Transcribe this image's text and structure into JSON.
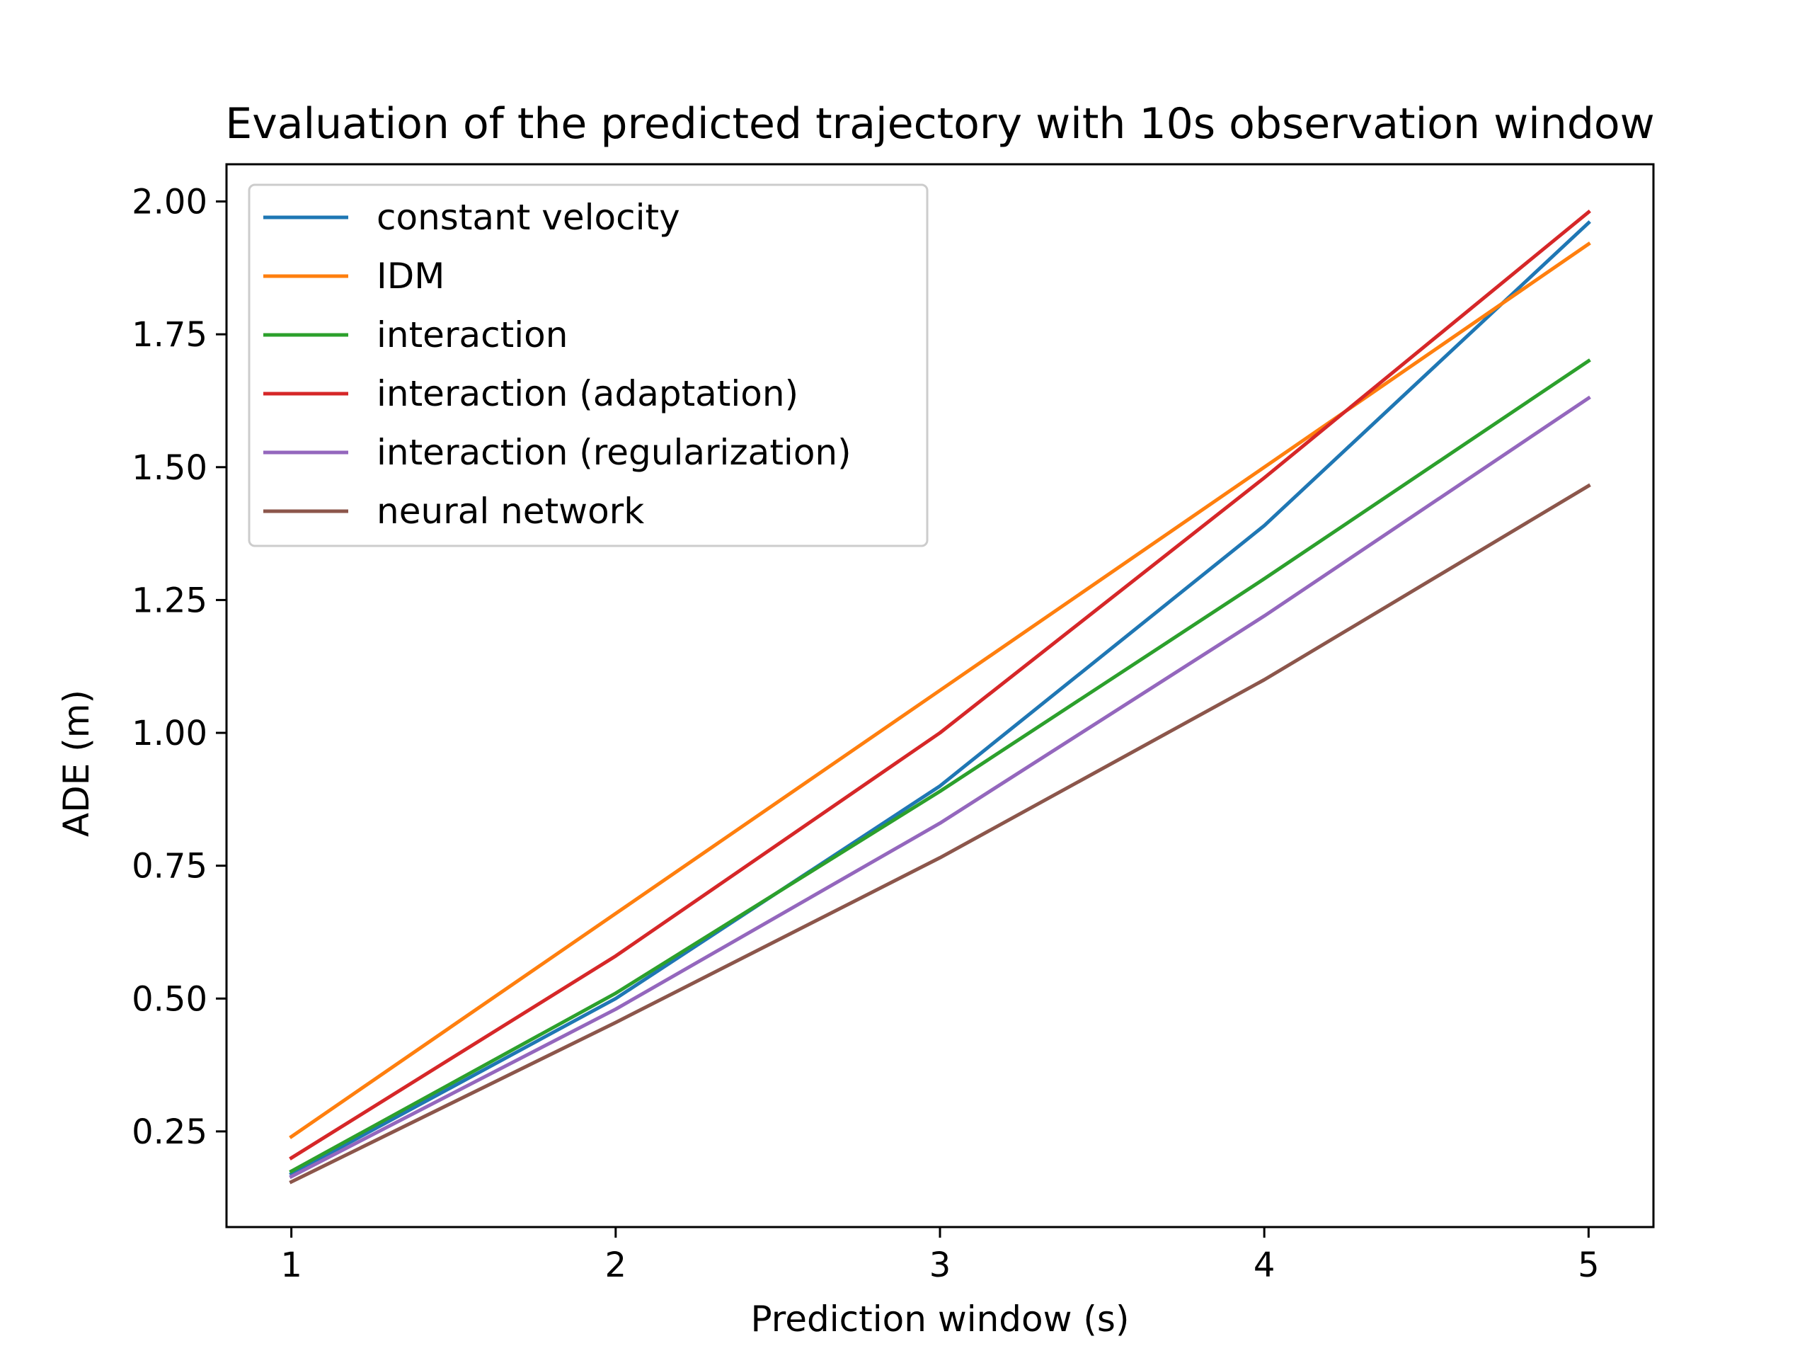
{
  "chart_data": {
    "type": "line",
    "title": "Evaluation of the predicted trajectory with 10s observation window",
    "xlabel": "Prediction window (s)",
    "ylabel": "ADE (m)",
    "x": [
      1,
      2,
      3,
      4,
      5
    ],
    "x_ticks": [
      "1",
      "2",
      "3",
      "4",
      "5"
    ],
    "y_ticks": [
      "0.25",
      "0.50",
      "0.75",
      "1.00",
      "1.25",
      "1.50",
      "1.75",
      "2.00"
    ],
    "xlim": [
      0.8,
      5.2
    ],
    "ylim": [
      0.07,
      2.07
    ],
    "grid": false,
    "legend_position": "upper-left",
    "series": [
      {
        "name": "constant velocity",
        "color": "#1f77b4",
        "values": [
          0.17,
          0.5,
          0.9,
          1.39,
          1.96
        ]
      },
      {
        "name": "IDM",
        "color": "#ff7f0e",
        "values": [
          0.24,
          0.66,
          1.08,
          1.5,
          1.92
        ]
      },
      {
        "name": "interaction",
        "color": "#2ca02c",
        "values": [
          0.175,
          0.51,
          0.89,
          1.29,
          1.7
        ]
      },
      {
        "name": "interaction (adaptation)",
        "color": "#d62728",
        "values": [
          0.2,
          0.58,
          1.0,
          1.48,
          1.98
        ]
      },
      {
        "name": "interaction (regularization)",
        "color": "#9467bd",
        "values": [
          0.165,
          0.48,
          0.83,
          1.22,
          1.63
        ]
      },
      {
        "name": "neural network",
        "color": "#8c564b",
        "values": [
          0.155,
          0.455,
          0.765,
          1.1,
          1.465
        ]
      }
    ]
  }
}
